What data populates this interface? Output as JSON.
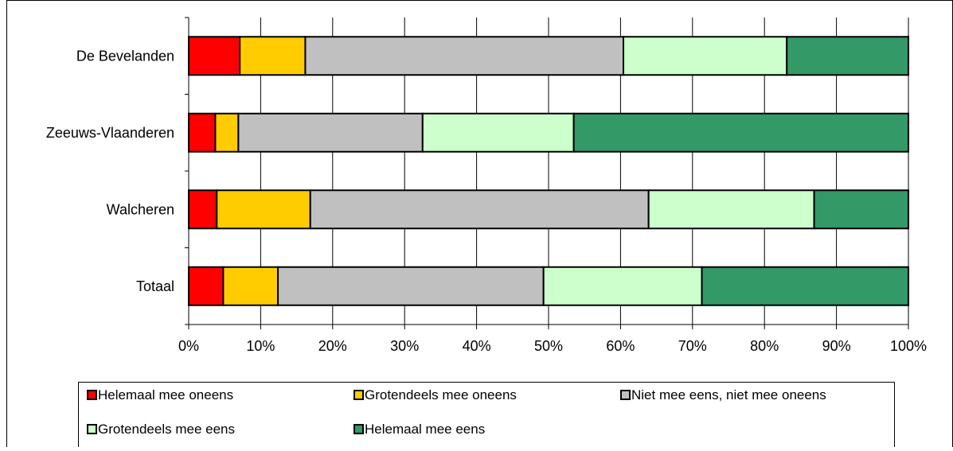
{
  "chart_data": {
    "type": "bar",
    "orientation": "horizontal",
    "stacked": "percent",
    "categories": [
      "De Bevelanden",
      "Zeeuws-Vlaanderen",
      "Walcheren",
      "Totaal"
    ],
    "x_ticks": [
      "0%",
      "10%",
      "20%",
      "30%",
      "40%",
      "50%",
      "60%",
      "70%",
      "80%",
      "90%",
      "100%"
    ],
    "xlim": [
      0,
      100
    ],
    "grid": true,
    "legend_position": "bottom",
    "series": [
      {
        "name": "Helemaal mee oneens",
        "color": "#ff0000",
        "values": [
          7.1,
          3.7,
          3.9,
          4.8
        ]
      },
      {
        "name": "Grotendeels mee oneens",
        "color": "#ffcc00",
        "values": [
          9.1,
          3.2,
          13.0,
          7.6
        ]
      },
      {
        "name": "Niet mee eens, niet mee oneens",
        "color": "#c0c0c0",
        "values": [
          44.2,
          25.6,
          47.0,
          36.9
        ]
      },
      {
        "name": "Grotendeels mee eens",
        "color": "#ccffcc",
        "values": [
          22.7,
          21.0,
          23.0,
          22.0
        ]
      },
      {
        "name": "Helemaal mee eens",
        "color": "#339966",
        "values": [
          16.9,
          46.5,
          13.1,
          28.7
        ]
      }
    ]
  }
}
